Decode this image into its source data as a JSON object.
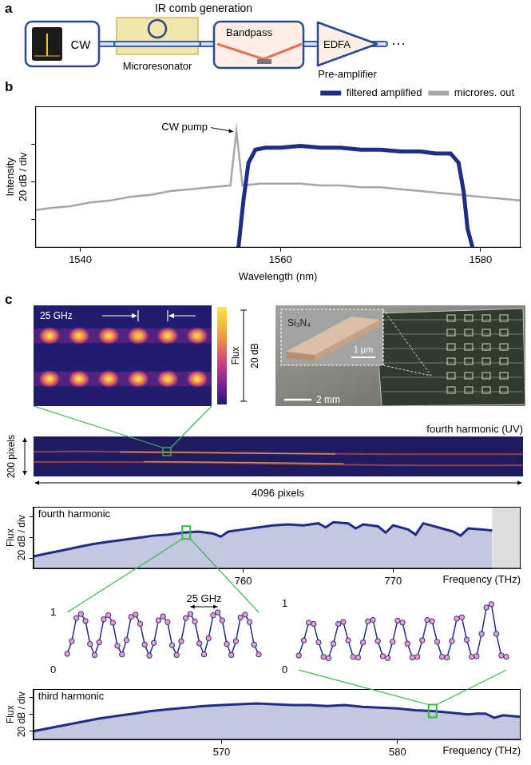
{
  "panel_labels": [
    "a",
    "b",
    "c"
  ],
  "diagram": {
    "title": "IR comb generation",
    "components": [
      {
        "label": "CW"
      },
      {
        "label": "Microresonator"
      },
      {
        "label": "Bandpass"
      },
      {
        "label": "EDFA",
        "caption": "Pre-amplifier"
      }
    ],
    "continuation": "···"
  },
  "camera_frame": {
    "spacing_label": "25 GHz",
    "colorbar": {
      "label": "Flux",
      "span_label": "20 dB"
    }
  },
  "chip_photo": {
    "material": "Si₃N₄",
    "scale_bars": [
      "1 µm",
      "2 mm"
    ]
  },
  "detector": {
    "title": "fourth harmonic (UV)",
    "height_label": "200 pixels",
    "width_label": "4096 pixels"
  },
  "chart_data": [
    {
      "type": "line",
      "xlabel": "Wavelength (nm)",
      "ylabel": [
        "Intensity",
        "20 dB / div"
      ],
      "xlim": [
        1535.5,
        1584
      ],
      "xticks": [
        1540,
        1560,
        1580
      ],
      "ylim": [
        0,
        75
      ],
      "yticks": [
        15,
        35,
        55
      ],
      "tick_labels": "x",
      "grid": false,
      "legend": "top right",
      "series": [
        {
          "name": "filtered amplified",
          "color": "#1f2d86",
          "x": [
            1555.8,
            1556.3,
            1556.8,
            1557.5,
            1558.5,
            1560,
            1562,
            1564,
            1566,
            1568,
            1570,
            1572,
            1574,
            1575.5,
            1577,
            1577.8,
            1578.3,
            1578.7,
            1579.2
          ],
          "values": [
            0,
            25,
            45,
            52,
            53,
            53,
            54,
            53,
            53,
            52,
            52,
            51,
            51,
            50,
            50,
            45,
            30,
            10,
            0
          ]
        },
        {
          "name": "microres. out",
          "color": "#a6a6a6",
          "x": [
            1535.5,
            1537,
            1539,
            1541,
            1543,
            1545,
            1547,
            1549,
            1551,
            1553,
            1555,
            1555.6,
            1556.2,
            1558,
            1560,
            1562,
            1564,
            1566,
            1568,
            1570,
            1572,
            1574,
            1576,
            1578,
            1580,
            1582,
            1584
          ],
          "values": [
            20,
            21,
            22,
            24,
            25,
            27,
            28,
            30,
            31,
            32,
            33,
            62,
            33,
            34,
            34,
            34,
            33,
            33,
            32,
            32,
            31,
            30,
            29,
            28,
            27,
            26,
            25
          ]
        }
      ],
      "annotations": [
        {
          "text": "CW pump",
          "x": 1555.6,
          "y": 62
        }
      ]
    },
    {
      "type": "area",
      "title": "fourth harmonic",
      "xlabel": "Frequency (THz)",
      "ylabel": [
        "Flux",
        "20 dB / div"
      ],
      "xlim": [
        746,
        778.5
      ],
      "xticks": [
        760,
        770
      ],
      "ylim": [
        0,
        60
      ],
      "yticks": [
        10,
        30,
        50
      ],
      "tick_labels": "x",
      "grid": false,
      "color": "#1f2d86",
      "shaded_xrange": [
        776.6,
        778.5
      ],
      "zoom_at": 756.2,
      "x": [
        746,
        747,
        748,
        749,
        750,
        751,
        752,
        753,
        754,
        755,
        756,
        757,
        758,
        758.5,
        759,
        760,
        761,
        762,
        763,
        764,
        765,
        765.5,
        766,
        767,
        767.5,
        768,
        769,
        769.5,
        770,
        771,
        771.5,
        772,
        773,
        774,
        774.5,
        775,
        776,
        776.6
      ],
      "values": [
        12,
        15,
        18,
        21,
        24,
        26,
        28,
        30,
        32,
        33,
        35,
        36,
        34,
        31,
        36,
        38,
        40,
        42,
        43,
        42,
        44,
        40,
        45,
        44,
        39,
        43,
        41,
        35,
        42,
        38,
        33,
        44,
        40,
        36,
        32,
        39,
        38,
        37
      ]
    },
    {
      "type": "area",
      "title": "third harmonic",
      "xlabel": "Frequency (THz)",
      "ylabel": [
        "Flux",
        "20 dB / div"
      ],
      "xlim": [
        559.3,
        587
      ],
      "xticks": [
        570,
        580
      ],
      "ylim": [
        0,
        60
      ],
      "yticks": [
        10,
        30,
        50
      ],
      "tick_labels": "x",
      "grid": false,
      "color": "#1f2d86",
      "zoom_at": 582,
      "x": [
        559.3,
        560,
        561,
        562,
        563,
        564,
        565,
        566,
        567,
        568,
        569,
        570,
        571,
        572,
        573,
        574,
        575,
        576,
        577,
        578,
        579,
        580,
        581,
        582,
        583,
        584,
        584.5,
        585,
        585.5,
        586,
        587
      ],
      "values": [
        10,
        13,
        17,
        21,
        25,
        28,
        31,
        34,
        36,
        38,
        40,
        41,
        42,
        43,
        42,
        41,
        41,
        40,
        41,
        39,
        38,
        37,
        35,
        34,
        32,
        30,
        31,
        31,
        26,
        29,
        27
      ]
    },
    {
      "type": "line",
      "spacing_label": "25 GHz",
      "ylim": [
        0,
        1
      ],
      "yticks": [
        0,
        1
      ],
      "tick_labels": "y",
      "grid": false,
      "color": "#1f2d86",
      "marker": "circle",
      "categories": [
        null,
        null,
        null,
        null,
        null,
        null,
        null,
        null,
        null,
        null,
        null,
        null,
        null,
        null,
        null,
        null,
        null,
        null,
        null,
        null,
        null,
        null,
        null,
        null,
        null,
        null,
        null,
        null,
        null,
        null,
        null,
        null,
        null,
        null,
        null,
        null,
        null,
        null,
        null,
        null,
        null,
        null,
        null
      ],
      "values": [
        0.28,
        0.5,
        0.9,
        0.97,
        0.85,
        0.45,
        0.26,
        0.48,
        0.88,
        0.95,
        0.82,
        0.42,
        0.27,
        0.52,
        0.92,
        0.96,
        0.8,
        0.44,
        0.25,
        0.47,
        0.86,
        0.93,
        0.83,
        0.43,
        0.26,
        0.5,
        0.9,
        0.97,
        0.84,
        0.46,
        0.27,
        0.55,
        0.95,
        1.0,
        0.86,
        0.45,
        0.26,
        0.5,
        0.91,
        0.96,
        0.83,
        0.44,
        0.27
      ]
    },
    {
      "type": "line",
      "ylim": [
        0,
        1
      ],
      "yticks": [
        0,
        1
      ],
      "tick_labels": "y",
      "grid": false,
      "color": "#1f2d86",
      "marker": "circle",
      "categories": [
        null,
        null,
        null,
        null,
        null,
        null,
        null,
        null,
        null,
        null,
        null,
        null,
        null,
        null,
        null,
        null,
        null,
        null,
        null,
        null,
        null,
        null,
        null,
        null,
        null,
        null,
        null,
        null,
        null,
        null,
        null,
        null,
        null,
        null,
        null,
        null,
        null,
        null,
        null,
        null,
        null,
        null,
        null
      ],
      "values": [
        0.22,
        0.45,
        0.72,
        0.7,
        0.42,
        0.2,
        0.18,
        0.4,
        0.7,
        0.73,
        0.45,
        0.2,
        0.19,
        0.42,
        0.74,
        0.76,
        0.44,
        0.21,
        0.18,
        0.43,
        0.75,
        0.72,
        0.4,
        0.19,
        0.2,
        0.45,
        0.76,
        0.74,
        0.43,
        0.2,
        0.19,
        0.44,
        0.78,
        0.8,
        0.46,
        0.2,
        0.21,
        0.55,
        0.95,
        1.0,
        0.55,
        0.22,
        0.2
      ]
    }
  ]
}
